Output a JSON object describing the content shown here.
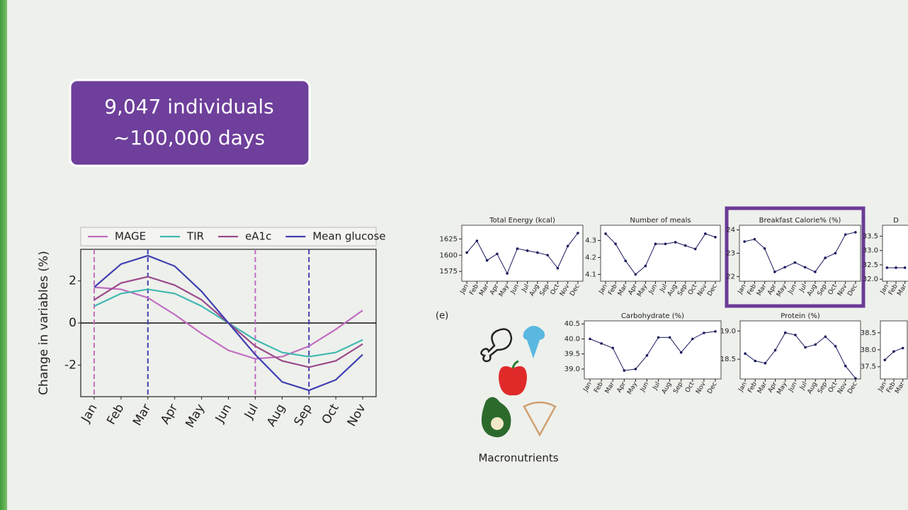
{
  "callout": {
    "lines": [
      "9,047 individuals",
      "~100,000 days"
    ]
  },
  "panel_label": "(e)",
  "icon_caption": "Macronutrients",
  "chart_data": [
    {
      "type": "line",
      "y_label": "Change in variables (%)",
      "legend": "top",
      "grid": false,
      "categories": [
        "Jan",
        "Feb",
        "Mar",
        "Apr",
        "May",
        "Jun",
        "Jul",
        "Aug",
        "Sep",
        "Oct",
        "Nov"
      ],
      "ylim": [
        -3.5,
        3.5
      ],
      "yticks": [
        -2,
        0,
        2
      ],
      "series": [
        {
          "name": "MAGE",
          "color": "#c06cc0",
          "values": [
            1.7,
            1.6,
            1.2,
            0.4,
            -0.5,
            -1.3,
            -1.7,
            -1.6,
            -1.1,
            -0.3,
            0.6
          ]
        },
        {
          "name": "TIR",
          "color": "#3fb8b0",
          "values": [
            0.8,
            1.4,
            1.6,
            1.4,
            0.8,
            0,
            -0.8,
            -1.4,
            -1.6,
            -1.4,
            -0.8
          ]
        },
        {
          "name": "eA1c",
          "color": "#9a4a8a",
          "values": [
            1.1,
            1.9,
            2.2,
            1.8,
            1.1,
            0,
            -1.1,
            -1.8,
            -2.1,
            -1.8,
            -1.0
          ]
        },
        {
          "name": "Mean glucose",
          "color": "#4040b0",
          "values": [
            1.7,
            2.8,
            3.2,
            2.7,
            1.5,
            0,
            -1.5,
            -2.8,
            -3.2,
            -2.7,
            -1.5
          ]
        }
      ]
    },
    {
      "type": "line",
      "title": "Total Energy (kcal)",
      "color": "#1a1a5e",
      "categories": [
        "Jan",
        "Feb",
        "Mar",
        "Apr",
        "May",
        "Jun",
        "Jul",
        "Aug",
        "Sep",
        "Oct",
        "Nov",
        "Dec"
      ],
      "ylim": [
        1560,
        1646
      ],
      "yticks": [
        1575,
        1600,
        1625
      ],
      "values": [
        1604,
        1622,
        1592,
        1602,
        1572,
        1610,
        1607,
        1604,
        1600,
        1580,
        1614,
        1634
      ]
    },
    {
      "type": "line",
      "title": "Number of meals",
      "color": "#1a1a5e",
      "categories": [
        "Jan",
        "Feb",
        "Mar",
        "Apr",
        "May",
        "Jun",
        "Jul",
        "Aug",
        "Sep",
        "Oct",
        "Nov",
        "Dec"
      ],
      "ylim": [
        4.06,
        4.39
      ],
      "yticks": [
        4.1,
        4.2,
        4.3
      ],
      "values": [
        4.34,
        4.28,
        4.18,
        4.1,
        4.15,
        4.28,
        4.28,
        4.29,
        4.27,
        4.25,
        4.34,
        4.32
      ]
    },
    {
      "type": "line",
      "title": "Breakfast Calorie% (%)",
      "color": "#1a1a5e",
      "categories": [
        "Jan",
        "Feb",
        "Mar",
        "Apr",
        "May",
        "Jun",
        "Jul",
        "Aug",
        "Sep",
        "Oct",
        "Nov",
        "Dec"
      ],
      "ylim": [
        21.8,
        24.2
      ],
      "yticks": [
        22,
        23,
        24
      ],
      "values": [
        23.5,
        23.6,
        23.2,
        22.2,
        22.4,
        22.6,
        22.4,
        22.2,
        22.8,
        23.0,
        23.8,
        23.9
      ]
    },
    {
      "type": "line",
      "title": "D",
      "color": "#1a1a5e",
      "categories": [
        "Jan",
        "Feb",
        "Mar"
      ],
      "ylim": [
        31.93,
        33.88
      ],
      "yticks": [
        {
          "value": 32,
          "label": "32.0"
        },
        32.5,
        {
          "value": 33,
          "label": "33.0"
        },
        33.5
      ],
      "values": [
        32.4,
        32.4,
        32.4
      ]
    },
    {
      "type": "line",
      "title": "Carbohydrate (%)",
      "color": "#1a1a5e",
      "categories": [
        "Jan",
        "Feb",
        "Mar",
        "Apr",
        "May",
        "Jun",
        "Jul",
        "Aug",
        "Sep",
        "Oct",
        "Nov",
        "Dec"
      ],
      "ylim": [
        38.67,
        40.6
      ],
      "yticks": [
        {
          "value": 39,
          "label": "39.0"
        },
        39.5,
        {
          "value": 40,
          "label": "40.0"
        },
        40.5
      ],
      "values": [
        40.0,
        39.85,
        39.7,
        38.95,
        39.0,
        39.45,
        40.05,
        40.05,
        39.55,
        40.0,
        40.2,
        40.25
      ]
    },
    {
      "type": "line",
      "title": "Protein (%)",
      "color": "#1a1a5e",
      "categories": [
        "Jan",
        "Feb",
        "Mar",
        "Apr",
        "May",
        "Jun",
        "Jul",
        "Aug",
        "Sep",
        "Oct",
        "Nov",
        "Dec"
      ],
      "ylim": [
        18.15,
        19.18
      ],
      "yticks": [
        18.5,
        {
          "value": 19,
          "label": "19.0"
        }
      ],
      "values": [
        18.6,
        18.47,
        18.43,
        18.66,
        18.97,
        18.93,
        18.71,
        18.76,
        18.9,
        18.73,
        18.38,
        18.16
      ]
    },
    {
      "type": "line",
      "color": "#1a1a5e",
      "categories": [
        "Jan",
        "Feb",
        "Mar"
      ],
      "ylim": [
        37.14,
        38.85
      ],
      "yticks": [
        37.5,
        {
          "value": 38,
          "label": "38.0"
        },
        38.5
      ],
      "values": [
        37.7,
        37.95,
        38.05
      ]
    }
  ]
}
